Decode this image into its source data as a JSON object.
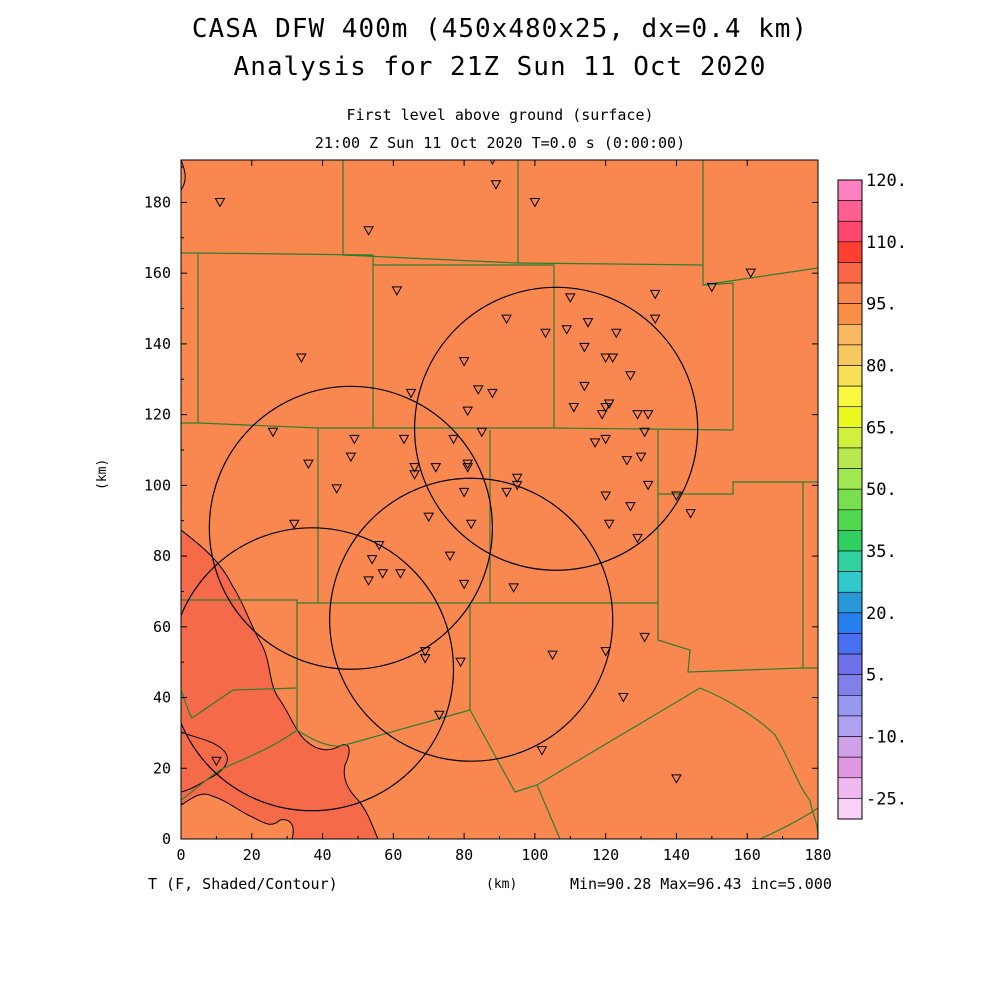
{
  "title": {
    "line1": "CASA DFW 400m (450x480x25, dx=0.4 km)",
    "line2": "Analysis for 21Z Sun 11 Oct 2020"
  },
  "subtitle": {
    "line1": "First level above ground (surface)",
    "line2": "21:00 Z Sun 11 Oct 2020   T=0.0 s (0:00:00)"
  },
  "axes": {
    "xlabel": "(km)",
    "ylabel": "(km)",
    "xticks": [
      "0",
      "20",
      "40",
      "60",
      "80",
      "100",
      "120",
      "140",
      "160",
      "180"
    ],
    "yticks": [
      "0",
      "20",
      "40",
      "60",
      "80",
      "100",
      "120",
      "140",
      "160",
      "180"
    ],
    "xrange_km": [
      0,
      180
    ],
    "yrange_km": [
      0,
      192
    ]
  },
  "footer": {
    "variable": "T (F, Shaded/Contour)",
    "stats": "Min=90.28 Max=96.43 inc=5.000"
  },
  "colorbar": {
    "labels": [
      "120.",
      "110.",
      "95.",
      "80.",
      "65.",
      "50.",
      "35.",
      "20.",
      "5.",
      "-10.",
      "-25."
    ],
    "colors": [
      "#ff80c0",
      "#ff6090",
      "#ff4870",
      "#ff4030",
      "#f86848",
      "#f88850",
      "#f89048",
      "#f8b860",
      "#f8c860",
      "#f8e058",
      "#f8f840",
      "#e8f820",
      "#d0f040",
      "#b8e850",
      "#a0e850",
      "#78e050",
      "#50d850",
      "#30d060",
      "#30d0a0",
      "#30c8c8",
      "#2898d8",
      "#2880f0",
      "#4870f0",
      "#7070e8",
      "#8080e8",
      "#9898f0",
      "#b0a0f0",
      "#d0a0e8",
      "#e098e0",
      "#f0b8f0",
      "#f8d0f8"
    ]
  },
  "colors": {
    "field_primary": "#f88850",
    "field_warm": "#f56a48",
    "county_lines": "#2e7d2e",
    "radar_rings": "#000000"
  },
  "map": {
    "radar_ranges_km": [
      40
    ],
    "radar_centers_km": [
      [
        106,
        116
      ],
      [
        48,
        88
      ],
      [
        37,
        48
      ],
      [
        82,
        62
      ]
    ],
    "stations_km": [
      [
        11,
        180
      ],
      [
        89,
        185
      ],
      [
        100,
        180
      ],
      [
        88,
        192
      ],
      [
        53,
        172
      ],
      [
        61,
        155
      ],
      [
        161,
        160
      ],
      [
        150,
        156
      ],
      [
        110,
        153
      ],
      [
        134,
        154
      ],
      [
        92,
        147
      ],
      [
        103,
        143
      ],
      [
        115,
        146
      ],
      [
        109,
        144
      ],
      [
        123,
        143
      ],
      [
        134,
        147
      ],
      [
        114,
        139
      ],
      [
        120,
        136
      ],
      [
        122,
        136
      ],
      [
        80,
        135
      ],
      [
        127,
        131
      ],
      [
        34,
        136
      ],
      [
        114,
        128
      ],
      [
        65,
        126
      ],
      [
        84,
        127
      ],
      [
        88,
        126
      ],
      [
        111,
        122
      ],
      [
        120,
        122
      ],
      [
        121,
        123
      ],
      [
        119,
        120
      ],
      [
        129,
        120
      ],
      [
        132,
        120
      ],
      [
        81,
        121
      ],
      [
        26,
        115
      ],
      [
        49,
        113
      ],
      [
        63,
        113
      ],
      [
        77,
        113
      ],
      [
        85,
        115
      ],
      [
        117,
        112
      ],
      [
        120,
        113
      ],
      [
        131,
        115
      ],
      [
        48,
        108
      ],
      [
        126,
        107
      ],
      [
        130,
        108
      ],
      [
        36,
        106
      ],
      [
        66,
        105
      ],
      [
        72,
        105
      ],
      [
        81,
        105
      ],
      [
        81,
        106
      ],
      [
        66,
        103
      ],
      [
        95,
        102
      ],
      [
        44,
        99
      ],
      [
        92,
        98
      ],
      [
        95,
        100
      ],
      [
        132,
        100
      ],
      [
        140,
        97
      ],
      [
        80,
        98
      ],
      [
        120,
        97
      ],
      [
        127,
        94
      ],
      [
        144,
        92
      ],
      [
        32,
        89
      ],
      [
        70,
        91
      ],
      [
        82,
        89
      ],
      [
        121,
        89
      ],
      [
        129,
        85
      ],
      [
        56,
        83
      ],
      [
        76,
        80
      ],
      [
        54,
        79
      ],
      [
        57,
        75
      ],
      [
        62,
        75
      ],
      [
        53,
        73
      ],
      [
        80,
        72
      ],
      [
        94,
        71
      ],
      [
        131,
        57
      ],
      [
        69,
        53
      ],
      [
        69,
        51
      ],
      [
        79,
        50
      ],
      [
        105,
        52
      ],
      [
        120,
        53
      ],
      [
        125,
        40
      ],
      [
        73,
        35
      ],
      [
        102,
        25
      ],
      [
        10,
        22
      ],
      [
        140,
        17
      ]
    ]
  }
}
